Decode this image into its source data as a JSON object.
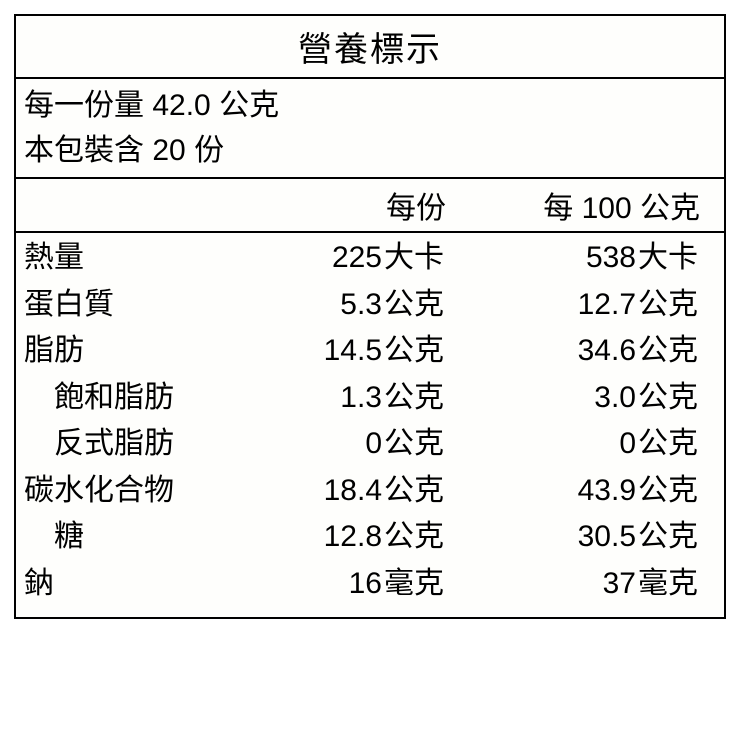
{
  "title": "營養標示",
  "serving": {
    "line1_label": "每一份量",
    "line1_value": "42.0",
    "line1_unit": "公克",
    "line2_label": "本包裝含",
    "line2_value": "20",
    "line2_unit": "份"
  },
  "headers": {
    "col1": "每份",
    "col2": "每 100 公克"
  },
  "rows": [
    {
      "label": "熱量",
      "indent": false,
      "v1": "225",
      "u1": "大卡",
      "v2": "538",
      "u2": "大卡"
    },
    {
      "label": "蛋白質",
      "indent": false,
      "v1": "5.3",
      "u1": "公克",
      "v2": "12.7",
      "u2": "公克"
    },
    {
      "label": "脂肪",
      "indent": false,
      "v1": "14.5",
      "u1": "公克",
      "v2": "34.6",
      "u2": "公克"
    },
    {
      "label": "飽和脂肪",
      "indent": true,
      "v1": "1.3",
      "u1": "公克",
      "v2": "3.0",
      "u2": "公克"
    },
    {
      "label": "反式脂肪",
      "indent": true,
      "v1": "0",
      "u1": "公克",
      "v2": "0",
      "u2": "公克"
    },
    {
      "label": "碳水化合物",
      "indent": false,
      "v1": "18.4",
      "u1": "公克",
      "v2": "43.9",
      "u2": "公克"
    },
    {
      "label": "糖",
      "indent": true,
      "v1": "12.8",
      "u1": "公克",
      "v2": "30.5",
      "u2": "公克"
    },
    {
      "label": "鈉",
      "indent": false,
      "v1": "16",
      "u1": "毫克",
      "v2": "37",
      "u2": "毫克"
    }
  ],
  "style": {
    "border_color": "#000000",
    "background_color": "#fefefc",
    "text_color": "#000000",
    "title_fontsize": 34,
    "body_fontsize": 30
  }
}
